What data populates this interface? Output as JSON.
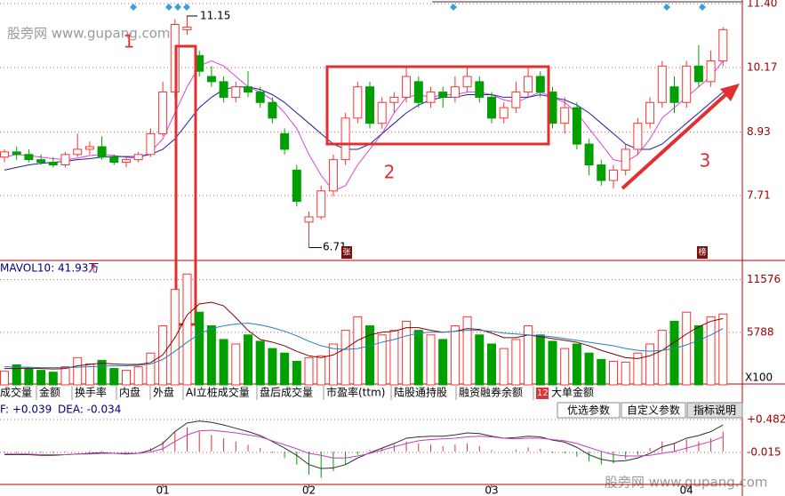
{
  "chart_data": [
    {
      "type": "candlestick",
      "up_color": "#ff3232",
      "down_color": "#00a000",
      "ohlc": [
        [
          8.45,
          8.6,
          8.35,
          8.55
        ],
        [
          8.55,
          8.65,
          8.4,
          8.5
        ],
        [
          8.5,
          8.6,
          8.35,
          8.4
        ],
        [
          8.4,
          8.5,
          8.3,
          8.35
        ],
        [
          8.35,
          8.45,
          8.25,
          8.3
        ],
        [
          8.3,
          8.55,
          8.25,
          8.5
        ],
        [
          8.5,
          8.9,
          8.45,
          8.6
        ],
        [
          8.6,
          8.75,
          8.5,
          8.65
        ],
        [
          8.65,
          8.85,
          8.4,
          8.45
        ],
        [
          8.45,
          8.5,
          8.3,
          8.35
        ],
        [
          8.35,
          8.45,
          8.25,
          8.4
        ],
        [
          8.4,
          8.55,
          8.35,
          8.5
        ],
        [
          8.5,
          9.0,
          8.45,
          8.9
        ],
        [
          8.9,
          9.9,
          8.85,
          9.7
        ],
        [
          9.7,
          11.1,
          9.6,
          11.0
        ],
        [
          10.9,
          11.15,
          10.8,
          10.95
        ],
        [
          10.4,
          10.5,
          10.0,
          10.1
        ],
        [
          10.0,
          10.2,
          9.8,
          9.9
        ],
        [
          9.9,
          10.0,
          9.5,
          9.6
        ],
        [
          9.6,
          9.9,
          9.5,
          9.8
        ],
        [
          9.8,
          10.1,
          9.6,
          9.7
        ],
        [
          9.7,
          9.8,
          9.4,
          9.5
        ],
        [
          9.5,
          9.6,
          9.1,
          9.2
        ],
        [
          8.9,
          9.0,
          8.5,
          8.6
        ],
        [
          8.2,
          8.3,
          7.5,
          7.6
        ],
        [
          7.2,
          7.4,
          6.71,
          7.3
        ],
        [
          7.3,
          7.9,
          7.25,
          7.8
        ],
        [
          7.8,
          8.5,
          7.7,
          8.4
        ],
        [
          8.4,
          9.3,
          8.3,
          9.2
        ],
        [
          9.2,
          9.9,
          9.1,
          9.8
        ],
        [
          9.8,
          9.9,
          9.0,
          9.1
        ],
        [
          9.1,
          9.6,
          9.0,
          9.5
        ],
        [
          9.5,
          9.7,
          9.3,
          9.6
        ],
        [
          9.6,
          10.2,
          9.5,
          10.0
        ],
        [
          9.9,
          10.0,
          9.4,
          9.5
        ],
        [
          9.5,
          9.8,
          9.4,
          9.7
        ],
        [
          9.7,
          9.8,
          9.4,
          9.6
        ],
        [
          9.6,
          10.0,
          9.5,
          9.8
        ],
        [
          9.8,
          10.2,
          9.7,
          10.0
        ],
        [
          9.9,
          10.0,
          9.5,
          9.6
        ],
        [
          9.6,
          9.7,
          9.1,
          9.2
        ],
        [
          9.2,
          9.5,
          9.1,
          9.4
        ],
        [
          9.4,
          9.9,
          9.3,
          9.7
        ],
        [
          9.7,
          10.2,
          9.6,
          10.0
        ],
        [
          10.0,
          10.1,
          9.6,
          9.7
        ],
        [
          9.7,
          9.8,
          9.0,
          9.1
        ],
        [
          9.1,
          9.6,
          8.9,
          9.4
        ],
        [
          9.4,
          9.5,
          8.6,
          8.7
        ],
        [
          8.7,
          8.8,
          8.1,
          8.3
        ],
        [
          8.3,
          8.4,
          7.9,
          8.0
        ],
        [
          8.0,
          8.3,
          7.85,
          8.2
        ],
        [
          8.2,
          8.7,
          8.1,
          8.6
        ],
        [
          8.6,
          9.2,
          8.5,
          9.1
        ],
        [
          9.1,
          9.6,
          9.0,
          9.5
        ],
        [
          9.5,
          10.3,
          9.4,
          10.2
        ],
        [
          9.8,
          10.0,
          9.3,
          9.5
        ],
        [
          9.5,
          10.3,
          9.4,
          10.2
        ],
        [
          10.2,
          10.6,
          9.8,
          9.9
        ],
        [
          9.9,
          10.5,
          9.8,
          10.3
        ],
        [
          10.3,
          10.95,
          10.2,
          10.9
        ]
      ],
      "series": [
        {
          "color": "#e040e0",
          "values": [
            8.45,
            8.5,
            8.48,
            8.45,
            8.42,
            8.4,
            8.43,
            8.48,
            8.5,
            8.48,
            8.45,
            8.42,
            8.55,
            8.8,
            9.3,
            9.8,
            10.2,
            10.3,
            10.2,
            10.0,
            9.8,
            9.7,
            9.55,
            9.3,
            9.0,
            8.5,
            8.1,
            7.8,
            7.9,
            8.3,
            8.6,
            8.9,
            9.3,
            9.6,
            9.65,
            9.6,
            9.65,
            9.65,
            9.7,
            9.7,
            9.65,
            9.55,
            9.5,
            9.6,
            9.7,
            9.6,
            9.5,
            9.3,
            9.0,
            8.7,
            8.4,
            8.35,
            8.5,
            8.8,
            9.2,
            9.4,
            9.6,
            9.8,
            10.0,
            10.3
          ]
        },
        {
          "color": "#2020a0",
          "values": [
            8.2,
            8.25,
            8.3,
            8.33,
            8.35,
            8.37,
            8.4,
            8.42,
            8.45,
            8.46,
            8.46,
            8.46,
            8.5,
            8.6,
            8.8,
            9.1,
            9.4,
            9.6,
            9.75,
            9.8,
            9.8,
            9.75,
            9.65,
            9.5,
            9.3,
            9.1,
            8.9,
            8.7,
            8.6,
            8.6,
            8.7,
            8.9,
            9.1,
            9.3,
            9.45,
            9.55,
            9.6,
            9.6,
            9.65,
            9.65,
            9.65,
            9.6,
            9.6,
            9.6,
            9.65,
            9.6,
            9.55,
            9.45,
            9.3,
            9.1,
            8.9,
            8.7,
            8.6,
            8.6,
            8.7,
            8.9,
            9.1,
            9.3,
            9.5,
            9.7
          ]
        }
      ],
      "ylim": [
        6.48,
        11.47
      ],
      "yticks": [
        {
          "value": 11.4,
          "label": "11.40"
        },
        10.17,
        8.93,
        7.71
      ],
      "grid": true,
      "annotations": [
        "1",
        "2",
        "3"
      ],
      "icons": [
        "张",
        "榜"
      ]
    },
    {
      "type": "bar",
      "legend": "MAVOL10: 41.93万",
      "trend_mark": "↑",
      "unit_label": "X100",
      "values": [
        1500,
        2200,
        1800,
        1600,
        1400,
        2000,
        3000,
        2300,
        2700,
        1800,
        1600,
        2000,
        3500,
        6500,
        10500,
        12200,
        8000,
        6500,
        5000,
        4500,
        5500,
        4800,
        4000,
        3500,
        2600,
        3000,
        3200,
        4500,
        6000,
        7500,
        6500,
        5500,
        6000,
        7000,
        6000,
        5500,
        5000,
        6500,
        7500,
        5500,
        4500,
        4000,
        5000,
        6500,
        5500,
        4800,
        4000,
        4500,
        3500,
        2800,
        2600,
        2500,
        3500,
        4500,
        6000,
        7000,
        8000,
        6500,
        7500,
        7800
      ],
      "series": [
        {
          "color": "#800000",
          "values": [
            1800,
            1800,
            1850,
            1800,
            1750,
            1800,
            2100,
            2250,
            2400,
            2300,
            2250,
            2250,
            2450,
            3300,
            5200,
            7700,
            8900,
            9100,
            8700,
            7400,
            6000,
            5000,
            4700,
            4300,
            3700,
            3200,
            3000,
            3300,
            4000,
            4900,
            5500,
            5800,
            5900,
            6300,
            6300,
            6000,
            5800,
            5900,
            6200,
            6100,
            5700,
            5200,
            5200,
            5500,
            5300,
            5100,
            4900,
            4700,
            4300,
            3800,
            3400,
            3000,
            2900,
            3200,
            3800,
            4700,
            5600,
            6400,
            7000,
            7300
          ]
        },
        {
          "color": "#2080c0",
          "values": [
            2000,
            1950,
            1950,
            1900,
            1900,
            1900,
            1950,
            2000,
            2050,
            2100,
            2100,
            2150,
            2300,
            2800,
            3700,
            4700,
            5600,
            6200,
            6500,
            6700,
            6800,
            6600,
            6300,
            5900,
            5400,
            4800,
            4300,
            4000,
            3900,
            4000,
            4300,
            4700,
            5000,
            5400,
            5700,
            5800,
            5800,
            5900,
            6000,
            6000,
            5900,
            5700,
            5600,
            5500,
            5400,
            5300,
            5100,
            4900,
            4700,
            4500,
            4300,
            4000,
            3800,
            3700,
            3800,
            4000,
            4400,
            4900,
            5500,
            6200
          ]
        }
      ],
      "ylim": [
        0,
        13500
      ],
      "yticks": [
        11576,
        5788
      ]
    },
    {
      "type": "macd",
      "legend": [
        "F: +0.039",
        "DEA: -0.034"
      ],
      "categories": [
        null,
        null,
        null,
        null,
        null,
        null,
        null,
        null,
        null,
        null,
        null,
        null,
        null,
        "01",
        null,
        null,
        null,
        null,
        null,
        null,
        null,
        null,
        null,
        null,
        null,
        "02",
        null,
        null,
        null,
        null,
        null,
        null,
        null,
        null,
        null,
        null,
        null,
        null,
        null,
        null,
        "03",
        null,
        null,
        null,
        null,
        null,
        null,
        null,
        null,
        null,
        null,
        null,
        null,
        null,
        null,
        null,
        "04",
        null,
        null,
        null
      ],
      "values": [
        -0.02,
        -0.02,
        -0.01,
        -0.02,
        -0.02,
        -0.01,
        0,
        0.01,
        0.01,
        0,
        -0.01,
        0,
        0.05,
        0.15,
        0.3,
        0.36,
        0.3,
        0.25,
        0.2,
        0.15,
        0.1,
        0.05,
        -0.02,
        -0.1,
        -0.2,
        -0.35,
        -0.4,
        -0.3,
        -0.2,
        -0.05,
        0.02,
        0.05,
        0.1,
        0.15,
        0.12,
        0.1,
        0.08,
        0.1,
        0.12,
        0.08,
        0.02,
        0,
        0.03,
        0.06,
        0.04,
        -0.02,
        -0.03,
        -0.08,
        -0.15,
        -0.2,
        -0.18,
        -0.12,
        -0.05,
        0.05,
        0.15,
        0.12,
        0.18,
        0.15,
        0.2,
        0.3
      ],
      "series": [
        {
          "color": "#303030",
          "values": [
            -0.05,
            -0.05,
            -0.05,
            -0.06,
            -0.06,
            -0.05,
            -0.04,
            -0.03,
            -0.02,
            -0.03,
            -0.04,
            -0.03,
            0.02,
            0.12,
            0.3,
            0.43,
            0.46,
            0.44,
            0.4,
            0.35,
            0.3,
            0.24,
            0.15,
            0.05,
            -0.06,
            -0.2,
            -0.26,
            -0.25,
            -0.2,
            -0.1,
            -0.02,
            0.05,
            0.12,
            0.2,
            0.22,
            0.23,
            0.23,
            0.25,
            0.28,
            0.27,
            0.23,
            0.2,
            0.21,
            0.23,
            0.22,
            0.17,
            0.14,
            0.06,
            -0.05,
            -0.12,
            -0.15,
            -0.14,
            -0.1,
            -0.03,
            0.07,
            0.12,
            0.2,
            0.24,
            0.3,
            0.4
          ]
        },
        {
          "color": "#c040c0",
          "values": [
            -0.04,
            -0.04,
            -0.04,
            -0.05,
            -0.05,
            -0.05,
            -0.04,
            -0.04,
            -0.03,
            -0.03,
            -0.03,
            -0.03,
            -0.01,
            0.04,
            0.15,
            0.25,
            0.31,
            0.32,
            0.3,
            0.28,
            0.25,
            0.22,
            0.16,
            0.1,
            0.04,
            -0.03,
            -0.06,
            -0.1,
            -0.1,
            -0.07,
            -0.03,
            0.02,
            0.07,
            0.12,
            0.16,
            0.18,
            0.19,
            0.2,
            0.22,
            0.23,
            0.22,
            0.2,
            0.19,
            0.2,
            0.2,
            0.18,
            0.16,
            0.12,
            0.06,
            0.0,
            -0.05,
            -0.07,
            -0.07,
            -0.06,
            -0.03,
            0,
            0.05,
            0.1,
            0.15,
            0.22
          ]
        }
      ],
      "ylim": [
        -0.5,
        0.576
      ],
      "yticks": [
        {
          "value": 0.482,
          "label": "+0.482"
        },
        {
          "value": -0.015,
          "label": "-0.015"
        }
      ]
    }
  ],
  "tabs": [
    "成交量",
    "金额",
    "换手率",
    "内盘",
    "外盘",
    "AI立桩成交量",
    "盘后成交量",
    "市盈率(ttm)",
    "陆股通持股",
    "融资融券余额",
    "12",
    "大单金额"
  ],
  "buttons": [
    "优选参数",
    "自定义参数",
    "指标说明"
  ],
  "watermark": "股旁网 www.gupang.com"
}
